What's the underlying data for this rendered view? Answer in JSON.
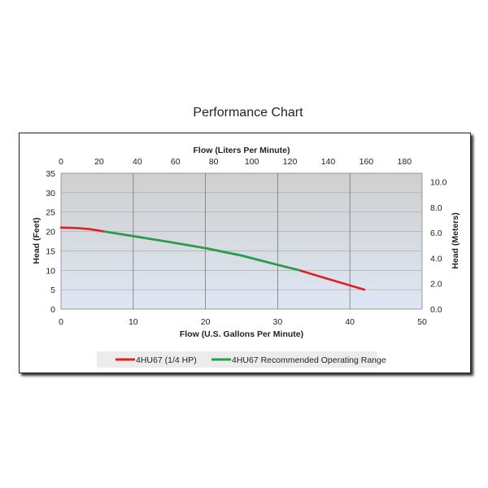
{
  "chart_data": {
    "type": "line",
    "title": "Performance Chart",
    "xlabel": "Flow (U.S. Gallons Per Minute)",
    "x2label": "Flow (Liters Per Minute)",
    "ylabel": "Head (Feet)",
    "y2label": "Head (Meters)",
    "xlim": [
      0,
      50
    ],
    "ylim": [
      0,
      35
    ],
    "x_ticks": [
      0,
      10,
      20,
      30,
      40,
      50
    ],
    "y_ticks": [
      0,
      5,
      10,
      15,
      20,
      25,
      30,
      35
    ],
    "x2_ticks": [
      0,
      20,
      40,
      60,
      80,
      100,
      120,
      140,
      160,
      180
    ],
    "y2_ticks": [
      "0.0",
      "2.0",
      "4.0",
      "6.0",
      "8.0",
      "10.0"
    ],
    "grid": "vertical",
    "legend_position": "bottom",
    "series": [
      {
        "name": "4HU67 (1/4 HP)",
        "color": "#e02020",
        "x": [
          0,
          2,
          4,
          6,
          10,
          15,
          20,
          25,
          30,
          33,
          36,
          40,
          42
        ],
        "y": [
          21,
          20.9,
          20.6,
          20,
          18.8,
          17.3,
          15.7,
          13.8,
          11.4,
          10,
          8.3,
          6.1,
          5
        ]
      },
      {
        "name": "4HU67 Recommended Operating Range",
        "color": "#1fa34a",
        "x": [
          6,
          10,
          15,
          20,
          25,
          30,
          33
        ],
        "y": [
          20,
          18.8,
          17.3,
          15.7,
          13.8,
          11.4,
          10
        ]
      }
    ]
  }
}
